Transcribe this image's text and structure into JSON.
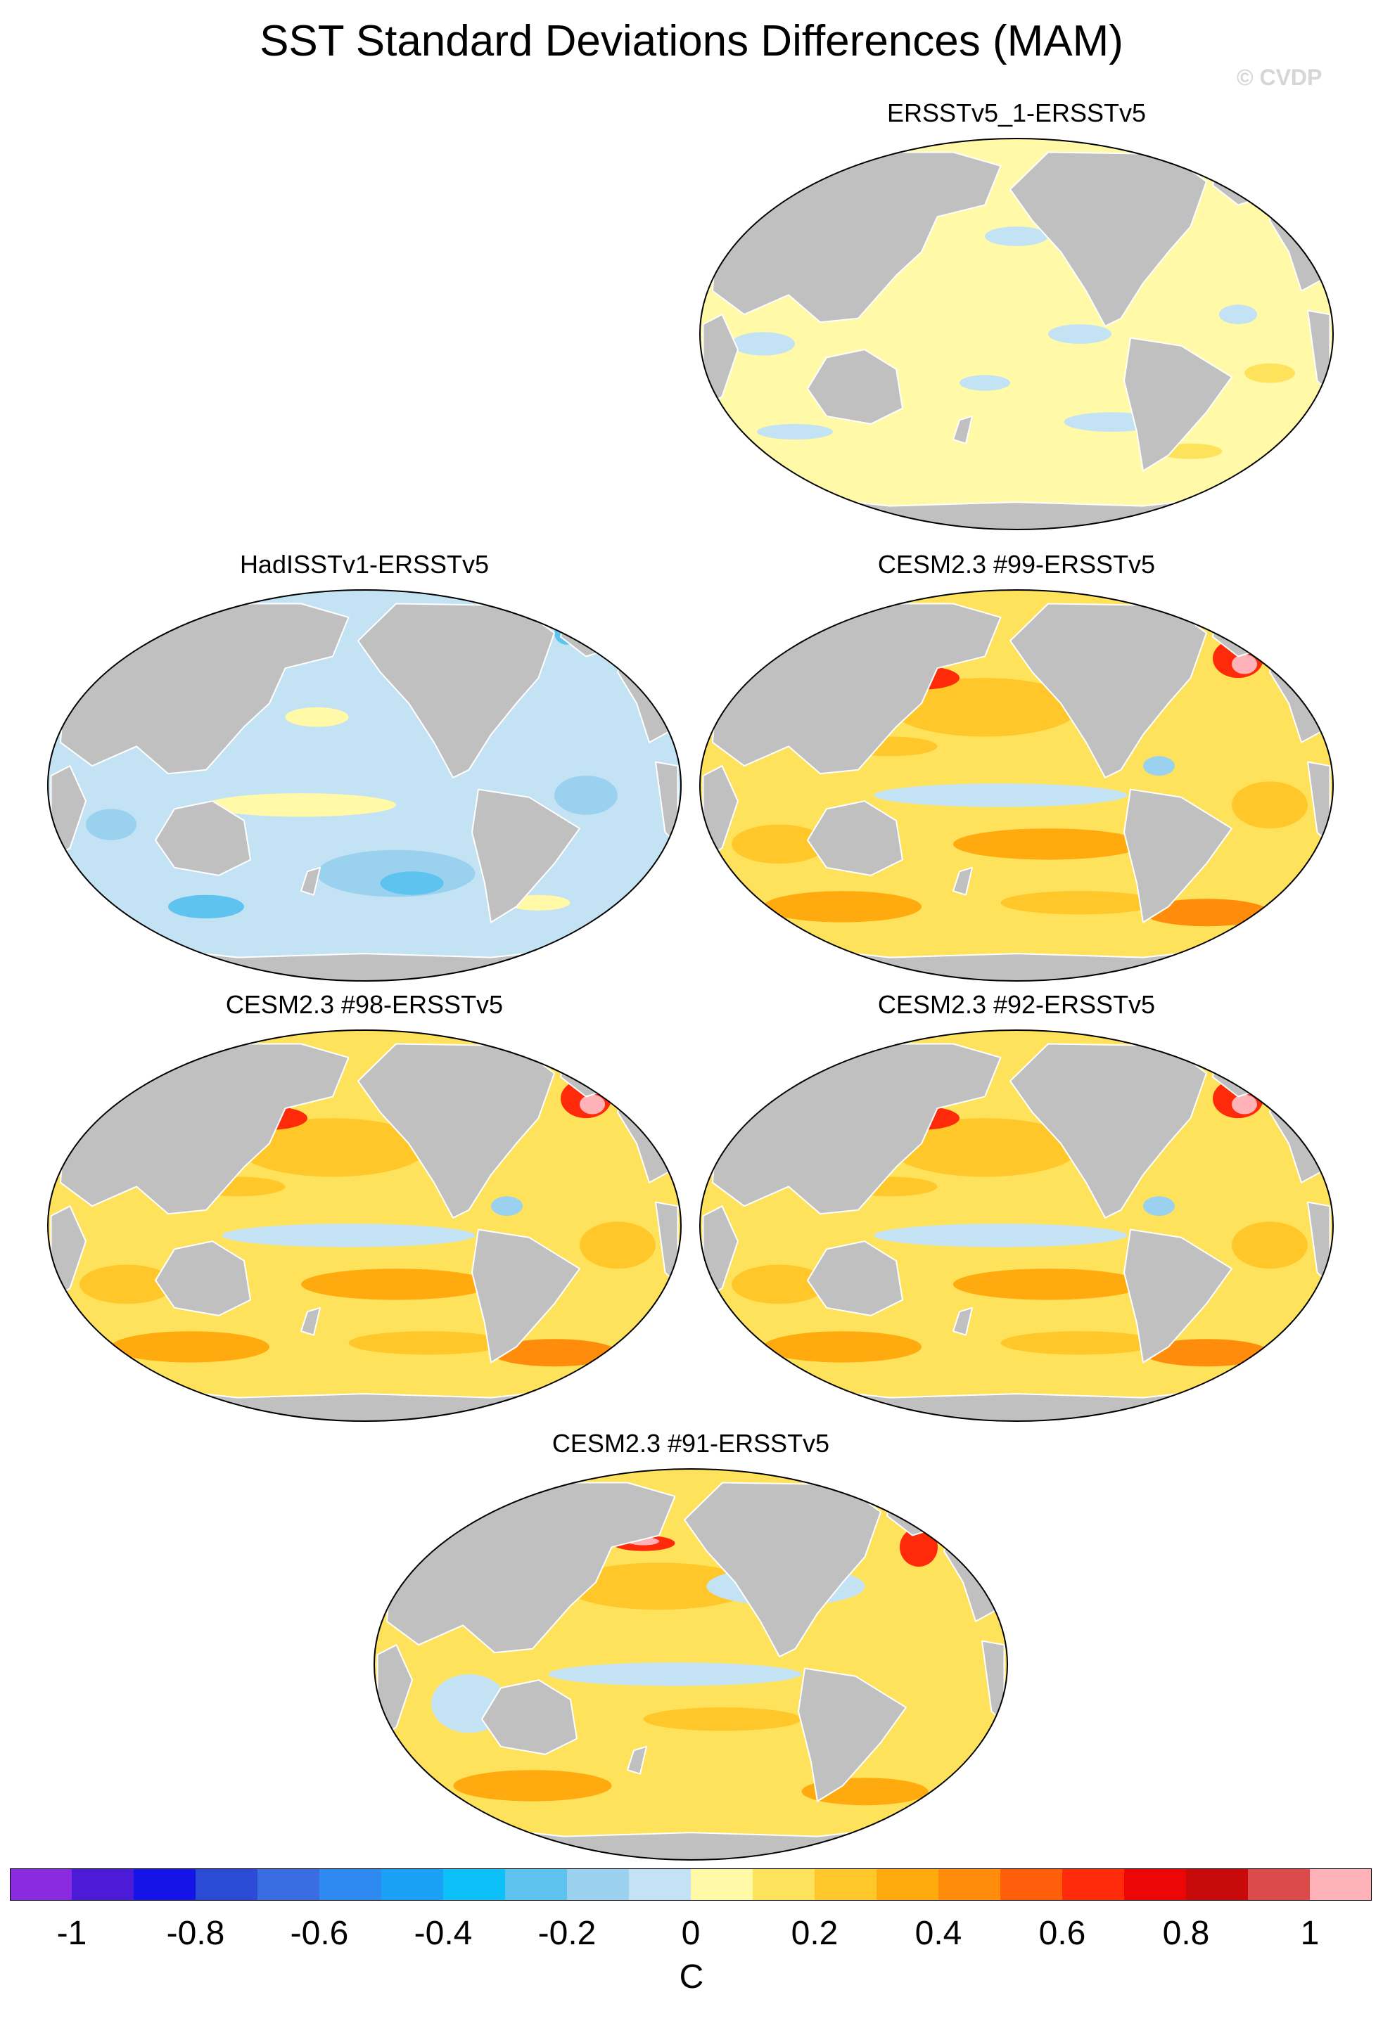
{
  "title": "SST Standard Deviations Differences (MAM)",
  "watermark": "© CVDP",
  "panels": [
    {
      "label": "ERSSTv5_1-ERSSTv5",
      "pattern": "weak-positive"
    },
    {
      "label": "HadISSTv1-ERSSTv5",
      "pattern": "negative"
    },
    {
      "label": "CESM2.3 #99-ERSSTv5",
      "pattern": "strong-positive"
    },
    {
      "label": "CESM2.3 #98-ERSSTv5",
      "pattern": "strong-positive"
    },
    {
      "label": "CESM2.3 #92-ERSSTv5",
      "pattern": "strong-positive"
    },
    {
      "label": "CESM2.3 #91-ERSSTv5",
      "pattern": "mixed-positive"
    }
  ],
  "colorbar": {
    "unit": "C",
    "min": -1.1,
    "max": 1.1,
    "step": 0.1,
    "colors": [
      "#8a2be2",
      "#4b1bd8",
      "#1414e6",
      "#2b4ad6",
      "#3a6ee0",
      "#2f8af0",
      "#1aa0f5",
      "#0ec0f8",
      "#5ec3ef",
      "#9ad1ee",
      "#c3e3f5",
      "#fff9a8",
      "#ffe25c",
      "#ffc72a",
      "#ffab0f",
      "#ff8c0a",
      "#ff5e0a",
      "#ff2a0a",
      "#ee0505",
      "#c80a0a",
      "#dd4a4a",
      "#ffb3b8"
    ],
    "tick_labels": [
      "-1",
      "-0.8",
      "-0.6",
      "-0.4",
      "-0.2",
      "0",
      "0.2",
      "0.4",
      "0.6",
      "0.8",
      "1"
    ]
  },
  "colors": {
    "land": "#c0c0c0",
    "coast": "#ffffff"
  }
}
